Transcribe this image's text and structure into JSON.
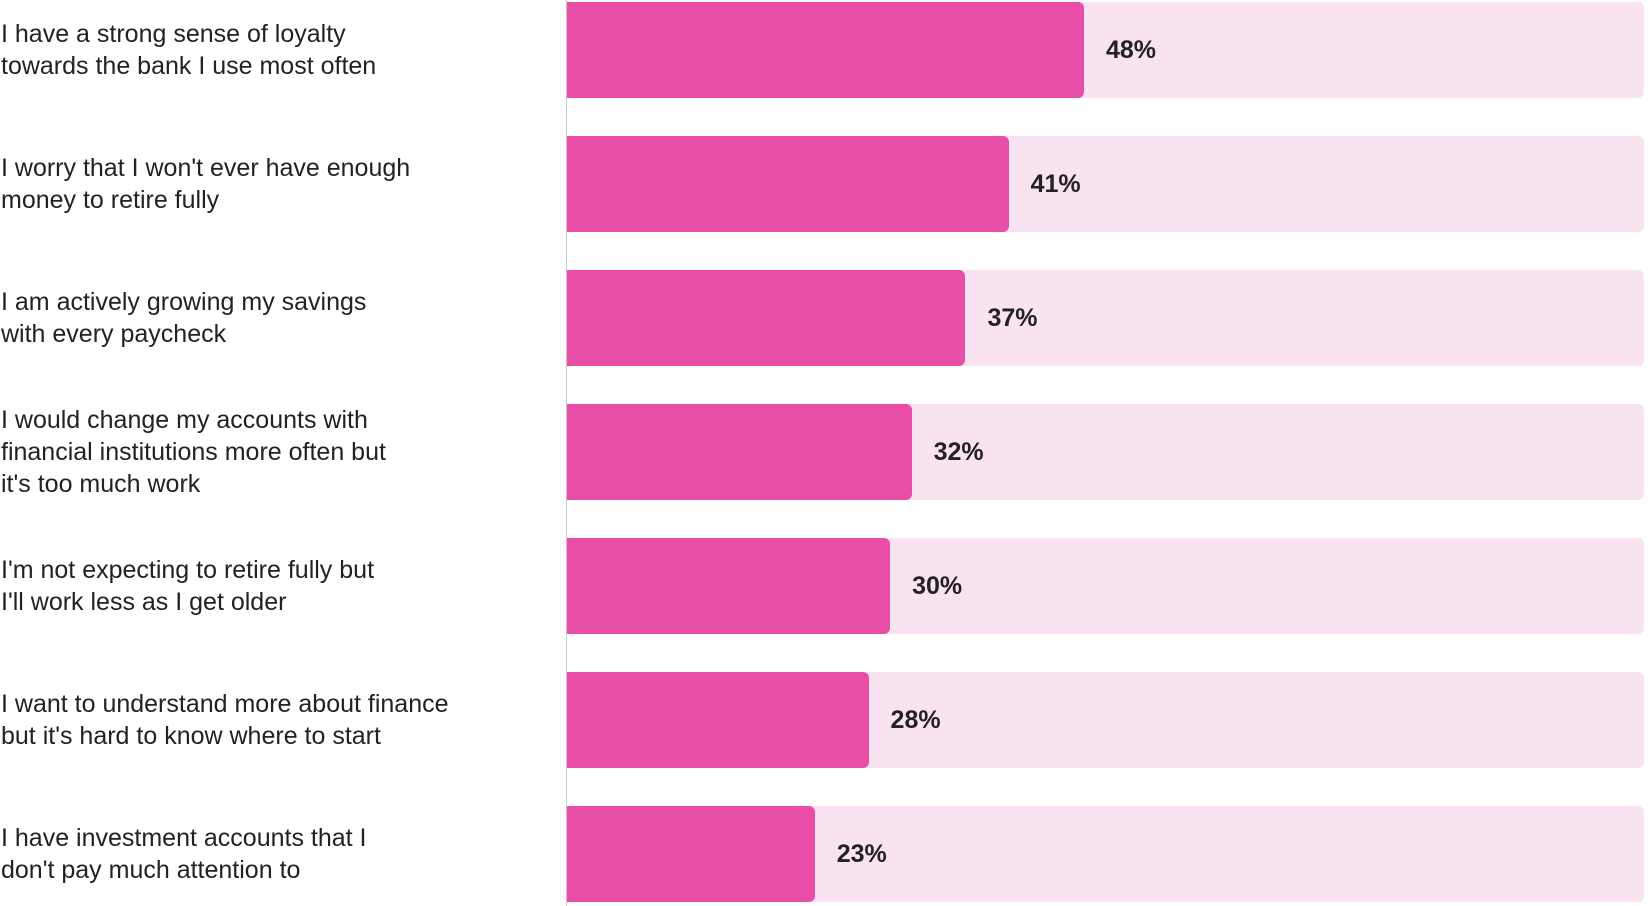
{
  "chart_data": {
    "type": "bar",
    "orientation": "horizontal",
    "categories": [
      "I have a strong sense of loyalty\ntowards the bank I use most often",
      "I worry that I won't ever have enough\nmoney to retire fully",
      "I am actively growing my savings\nwith every paycheck",
      "I would change my accounts with\nfinancial institutions more often but\nit's too much work",
      "I'm not expecting to retire fully but\nI'll work less as I get older",
      "I want to understand more about finance\nbut it's hard to know where to start",
      "I have investment accounts that I\ndon't pay much attention to"
    ],
    "values": [
      48,
      41,
      37,
      32,
      30,
      28,
      23
    ],
    "value_labels": [
      "48%",
      "41%",
      "37%",
      "32%",
      "30%",
      "28%",
      "23%"
    ],
    "xlim": [
      0,
      100
    ],
    "grid": false,
    "legend": "none",
    "colors": {
      "bar": "#e84ea8",
      "track": "#f9e3f0"
    }
  }
}
